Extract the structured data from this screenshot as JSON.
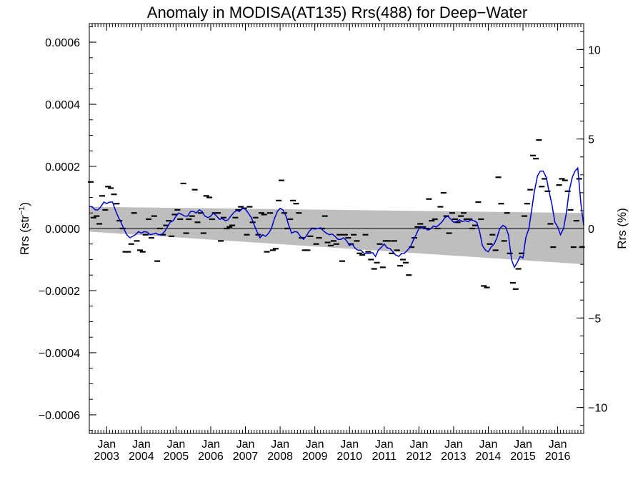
{
  "chart_data": {
    "type": "line",
    "title": "Anomaly in MODISA(AT135) Rrs(488) for Deep−Water",
    "ylabel_left": {
      "prefix": "Rrs (str",
      "superscript": "−1",
      "suffix": ")"
    },
    "ylabel_right": "Rrs (%)",
    "x_range": [
      2002.5,
      2016.75
    ],
    "y_range": [
      -0.00066,
      0.00066
    ],
    "y_right_range": [
      -11.45,
      11.45
    ],
    "y_ticks": [
      {
        "value": 0.0006,
        "label": "0.0006"
      },
      {
        "value": 0.0004,
        "label": "0.0004"
      },
      {
        "value": 0.0002,
        "label": "0.0002"
      },
      {
        "value": 0.0,
        "label": "0.0000"
      },
      {
        "value": -0.0002,
        "label": "−0.0002"
      },
      {
        "value": -0.0004,
        "label": "−0.0004"
      },
      {
        "value": -0.0006,
        "label": "−0.0006"
      }
    ],
    "y_right_ticks": [
      {
        "value": 10,
        "label": "10"
      },
      {
        "value": 5,
        "label": "5"
      },
      {
        "value": 0,
        "label": "0"
      },
      {
        "value": -5,
        "label": "−5"
      },
      {
        "value": -10,
        "label": "−10"
      }
    ],
    "x_ticks": [
      {
        "value": 2003,
        "month": "Jan",
        "year": "2003"
      },
      {
        "value": 2004,
        "month": "Jan",
        "year": "2004"
      },
      {
        "value": 2005,
        "month": "Jan",
        "year": "2005"
      },
      {
        "value": 2006,
        "month": "Jan",
        "year": "2006"
      },
      {
        "value": 2007,
        "month": "Jan",
        "year": "2007"
      },
      {
        "value": 2008,
        "month": "Jan",
        "year": "2008"
      },
      {
        "value": 2009,
        "month": "Jan",
        "year": "2009"
      },
      {
        "value": 2010,
        "month": "Jan",
        "year": "2010"
      },
      {
        "value": 2011,
        "month": "Jan",
        "year": "2011"
      },
      {
        "value": 2012,
        "month": "Jan",
        "year": "2012"
      },
      {
        "value": 2013,
        "month": "Jan",
        "year": "2013"
      },
      {
        "value": 2014,
        "month": "Jan",
        "year": "2014"
      },
      {
        "value": 2015,
        "month": "Jan",
        "year": "2015"
      },
      {
        "value": 2016,
        "month": "Jan",
        "year": "2016"
      }
    ],
    "confidence_band": {
      "color": "#bebebe",
      "start": {
        "x": 2002.5,
        "upper": 7e-05,
        "lower": -1e-05
      },
      "end": {
        "x": 2016.75,
        "upper": 5e-05,
        "lower": -0.000115
      }
    },
    "zero_line": 0,
    "colors": {
      "smoothed": "#0000cc",
      "monthly": "#000000",
      "band": "#bebebe",
      "zero": "#000000"
    },
    "monthly_anomaly": [
      [
        2002.54,
        0.00015
      ],
      [
        2002.62,
        3.5e-05
      ],
      [
        2002.71,
        4e-05
      ],
      [
        2002.79,
        1.5e-05
      ],
      [
        2002.87,
        0.000105
      ],
      [
        2002.96,
        6e-05
      ],
      [
        2003.04,
        0.000135
      ],
      [
        2003.12,
        0.00013
      ],
      [
        2003.21,
        0.00011
      ],
      [
        2003.29,
        8e-05
      ],
      [
        2003.37,
        2.5e-05
      ],
      [
        2003.46,
        0.0
      ],
      [
        2003.54,
        -7.5e-05
      ],
      [
        2003.62,
        -7.5e-05
      ],
      [
        2003.71,
        -5e-05
      ],
      [
        2003.79,
        5e-05
      ],
      [
        2003.87,
        -4e-05
      ],
      [
        2003.96,
        -7e-05
      ],
      [
        2004.04,
        -7.5e-05
      ],
      [
        2004.12,
        -2e-05
      ],
      [
        2004.21,
        3e-05
      ],
      [
        2004.29,
        -3e-05
      ],
      [
        2004.37,
        4e-05
      ],
      [
        2004.46,
        -0.000105
      ],
      [
        2004.54,
        0.0
      ],
      [
        2004.62,
        -2e-05
      ],
      [
        2004.71,
        1e-05
      ],
      [
        2004.79,
        2.5e-05
      ],
      [
        2004.87,
        -2.5e-05
      ],
      [
        2004.96,
        4.5e-05
      ],
      [
        2005.04,
        6e-05
      ],
      [
        2005.12,
        3e-05
      ],
      [
        2005.21,
        0.000145
      ],
      [
        2005.29,
        -1.5e-05
      ],
      [
        2005.37,
        3e-05
      ],
      [
        2005.46,
        4e-05
      ],
      [
        2005.54,
        0.000125
      ],
      [
        2005.62,
        2e-05
      ],
      [
        2005.71,
        5e-05
      ],
      [
        2005.79,
        -1.5e-05
      ],
      [
        2005.87,
        0.000105
      ],
      [
        2005.96,
        0.0001
      ],
      [
        2006.04,
        3e-05
      ],
      [
        2006.12,
        5e-05
      ],
      [
        2006.21,
        5e-05
      ],
      [
        2006.29,
        -4e-05
      ],
      [
        2006.37,
        3.5e-05
      ],
      [
        2006.46,
        0.0
      ],
      [
        2006.54,
        5e-06
      ],
      [
        2006.62,
        1e-05
      ],
      [
        2006.71,
        3.5e-05
      ],
      [
        2006.79,
        6e-05
      ],
      [
        2006.87,
        7e-05
      ],
      [
        2006.96,
        6.5e-05
      ],
      [
        2007.04,
        -2e-05
      ],
      [
        2007.12,
        7e-05
      ],
      [
        2007.21,
        2e-05
      ],
      [
        2007.29,
        3.5e-05
      ],
      [
        2007.37,
        -2e-05
      ],
      [
        2007.46,
        5e-05
      ],
      [
        2007.54,
        4.5e-05
      ],
      [
        2007.62,
        -7.5e-05
      ],
      [
        2007.71,
        5e-05
      ],
      [
        2007.79,
        -7e-05
      ],
      [
        2007.87,
        -6.5e-05
      ],
      [
        2007.96,
        9e-05
      ],
      [
        2008.04,
        0.000155
      ],
      [
        2008.12,
        5e-05
      ],
      [
        2008.21,
        0.0
      ],
      [
        2008.29,
        3e-05
      ],
      [
        2008.37,
        9e-05
      ],
      [
        2008.46,
        8e-05
      ],
      [
        2008.54,
        5e-05
      ],
      [
        2008.62,
        -3e-05
      ],
      [
        2008.71,
        -7e-05
      ],
      [
        2008.79,
        -7e-05
      ],
      [
        2008.87,
        -2.5e-05
      ],
      [
        2008.96,
        0.0
      ],
      [
        2009.04,
        -5e-05
      ],
      [
        2009.12,
        -3e-05
      ],
      [
        2009.21,
        0.0
      ],
      [
        2009.29,
        4e-05
      ],
      [
        2009.37,
        -4.5e-05
      ],
      [
        2009.46,
        -5.5e-05
      ],
      [
        2009.54,
        -4e-05
      ],
      [
        2009.62,
        -5e-05
      ],
      [
        2009.71,
        -2e-05
      ],
      [
        2009.79,
        -0.000105
      ],
      [
        2009.87,
        -2e-05
      ],
      [
        2009.96,
        -3e-05
      ],
      [
        2010.04,
        -5e-05
      ],
      [
        2010.12,
        -2e-05
      ],
      [
        2010.21,
        -4e-05
      ],
      [
        2010.29,
        -8e-05
      ],
      [
        2010.37,
        -8.5e-05
      ],
      [
        2010.46,
        -2e-05
      ],
      [
        2010.54,
        -7.5e-05
      ],
      [
        2010.62,
        -0.0001
      ],
      [
        2010.71,
        -0.00013
      ],
      [
        2010.79,
        -0.00011
      ],
      [
        2010.87,
        -5e-05
      ],
      [
        2010.96,
        -0.000125
      ],
      [
        2011.04,
        -4e-05
      ],
      [
        2011.12,
        -4e-05
      ],
      [
        2011.21,
        -8e-05
      ],
      [
        2011.29,
        -4e-05
      ],
      [
        2011.37,
        -7e-05
      ],
      [
        2011.46,
        -0.00012
      ],
      [
        2011.54,
        -0.0001
      ],
      [
        2011.62,
        -0.00011
      ],
      [
        2011.71,
        -0.00015
      ],
      [
        2011.79,
        -6e-05
      ],
      [
        2011.87,
        -3e-05
      ],
      [
        2011.96,
        5e-06
      ],
      [
        2012.04,
        1.5e-05
      ],
      [
        2012.12,
        5e-06
      ],
      [
        2012.21,
        0.0
      ],
      [
        2012.29,
        9.5e-05
      ],
      [
        2012.37,
        2.5e-05
      ],
      [
        2012.46,
        3e-05
      ],
      [
        2012.54,
        0.0
      ],
      [
        2012.62,
        7e-05
      ],
      [
        2012.71,
        0.000115
      ],
      [
        2012.79,
        4e-05
      ],
      [
        2012.87,
        -1.5e-05
      ],
      [
        2012.96,
        5e-05
      ],
      [
        2013.04,
        3e-05
      ],
      [
        2013.12,
        2e-05
      ],
      [
        2013.21,
        4e-05
      ],
      [
        2013.29,
        5e-05
      ],
      [
        2013.37,
        3e-05
      ],
      [
        2013.46,
        3e-05
      ],
      [
        2013.54,
        0.0
      ],
      [
        2013.62,
        1e-05
      ],
      [
        2013.71,
        8.5e-05
      ],
      [
        2013.79,
        3e-05
      ],
      [
        2013.87,
        -0.000185
      ],
      [
        2013.96,
        -0.00019
      ],
      [
        2014.04,
        -5e-05
      ],
      [
        2014.12,
        -2e-05
      ],
      [
        2014.21,
        -7e-05
      ],
      [
        2014.29,
        0.000165
      ],
      [
        2014.37,
        8e-05
      ],
      [
        2014.46,
        -4e-05
      ],
      [
        2014.54,
        5e-05
      ],
      [
        2014.62,
        -8e-05
      ],
      [
        2014.71,
        -0.000175
      ],
      [
        2014.79,
        -0.000195
      ],
      [
        2014.87,
        -0.00013
      ],
      [
        2014.96,
        -8e-05
      ],
      [
        2015.04,
        4e-05
      ],
      [
        2015.12,
        8e-05
      ],
      [
        2015.21,
        0.000125
      ],
      [
        2015.29,
        0.000235
      ],
      [
        2015.37,
        0.000225
      ],
      [
        2015.46,
        0.000285
      ],
      [
        2015.54,
        0.000135
      ],
      [
        2015.62,
        0.00016
      ],
      [
        2015.71,
        0.00012
      ],
      [
        2015.79,
        1.5e-05
      ],
      [
        2015.87,
        -6e-05
      ],
      [
        2016.04,
        0.00014
      ],
      [
        2016.12,
        0.00016
      ],
      [
        2016.21,
        0.000155
      ],
      [
        2016.29,
        0.00012
      ],
      [
        2016.37,
        6e-05
      ],
      [
        2016.46,
        -6e-05
      ],
      [
        2016.54,
        2.5e-05
      ],
      [
        2016.62,
        0.00016
      ],
      [
        2016.7,
        -6e-05
      ]
    ],
    "smoothed_anomaly": [
      [
        2002.5,
        7.2e-05
      ],
      [
        2002.58,
        7e-05
      ],
      [
        2002.67,
        6e-05
      ],
      [
        2002.75,
        6e-05
      ],
      [
        2002.83,
        7e-05
      ],
      [
        2002.92,
        8.5e-05
      ],
      [
        2003.0,
        8e-05
      ],
      [
        2003.08,
        8.5e-05
      ],
      [
        2003.17,
        8.5e-05
      ],
      [
        2003.25,
        6e-05
      ],
      [
        2003.33,
        3.8e-05
      ],
      [
        2003.42,
        1.8e-05
      ],
      [
        2003.5,
        -2e-06
      ],
      [
        2003.58,
        -2e-05
      ],
      [
        2003.67,
        -3e-05
      ],
      [
        2003.75,
        -2.5e-05
      ],
      [
        2003.83,
        -2e-05
      ],
      [
        2003.92,
        -1e-05
      ],
      [
        2004.0,
        -1.5e-05
      ],
      [
        2004.08,
        -1e-05
      ],
      [
        2004.17,
        -1.2e-05
      ],
      [
        2004.25,
        -2e-05
      ],
      [
        2004.33,
        -1.8e-05
      ],
      [
        2004.42,
        -1.5e-05
      ],
      [
        2004.5,
        -2e-05
      ],
      [
        2004.58,
        -2e-05
      ],
      [
        2004.67,
        -1e-05
      ],
      [
        2004.75,
        5e-06
      ],
      [
        2004.83,
        2e-05
      ],
      [
        2004.92,
        2.5e-05
      ],
      [
        2005.0,
        4e-05
      ],
      [
        2005.08,
        5e-05
      ],
      [
        2005.17,
        4.5e-05
      ],
      [
        2005.25,
        4e-05
      ],
      [
        2005.33,
        4e-05
      ],
      [
        2005.42,
        5.5e-05
      ],
      [
        2005.5,
        5.5e-05
      ],
      [
        2005.58,
        5e-05
      ],
      [
        2005.67,
        6e-05
      ],
      [
        2005.75,
        5.5e-05
      ],
      [
        2005.83,
        4e-05
      ],
      [
        2005.92,
        3.5e-05
      ],
      [
        2006.0,
        4e-05
      ],
      [
        2006.08,
        5e-05
      ],
      [
        2006.17,
        4e-05
      ],
      [
        2006.25,
        3e-05
      ],
      [
        2006.33,
        3.2e-05
      ],
      [
        2006.42,
        2.5e-05
      ],
      [
        2006.5,
        2.8e-05
      ],
      [
        2006.58,
        4e-05
      ],
      [
        2006.67,
        5.2e-05
      ],
      [
        2006.75,
        5.8e-05
      ],
      [
        2006.83,
        5.5e-05
      ],
      [
        2006.92,
        6.5e-05
      ],
      [
        2007.0,
        6.2e-05
      ],
      [
        2007.08,
        5e-05
      ],
      [
        2007.17,
        3.5e-05
      ],
      [
        2007.25,
        1.2e-05
      ],
      [
        2007.33,
        -1e-05
      ],
      [
        2007.42,
        -3e-05
      ],
      [
        2007.5,
        -2e-05
      ],
      [
        2007.58,
        -2.5e-05
      ],
      [
        2007.67,
        -1.5e-05
      ],
      [
        2007.75,
        0.0
      ],
      [
        2007.83,
        3e-05
      ],
      [
        2007.92,
        5.5e-05
      ],
      [
        2008.0,
        6.5e-05
      ],
      [
        2008.08,
        6e-05
      ],
      [
        2008.17,
        4e-05
      ],
      [
        2008.25,
        1e-05
      ],
      [
        2008.33,
        -1.5e-05
      ],
      [
        2008.42,
        -1e-05
      ],
      [
        2008.5,
        -1.2e-05
      ],
      [
        2008.58,
        -2.5e-05
      ],
      [
        2008.67,
        -3.5e-05
      ],
      [
        2008.75,
        -2.5e-05
      ],
      [
        2008.83,
        -1e-05
      ],
      [
        2008.92,
        0.0
      ],
      [
        2009.0,
        -2e-06
      ],
      [
        2009.08,
        0.0
      ],
      [
        2009.17,
        2e-06
      ],
      [
        2009.25,
        -8e-06
      ],
      [
        2009.33,
        -1.5e-05
      ],
      [
        2009.42,
        -2e-05
      ],
      [
        2009.5,
        -1.8e-05
      ],
      [
        2009.58,
        -2.5e-05
      ],
      [
        2009.67,
        -3.5e-05
      ],
      [
        2009.75,
        -3.5e-05
      ],
      [
        2009.83,
        -3e-05
      ],
      [
        2009.92,
        -4e-05
      ],
      [
        2010.0,
        -5.5e-05
      ],
      [
        2010.08,
        -5e-05
      ],
      [
        2010.17,
        -6.5e-05
      ],
      [
        2010.25,
        -7e-05
      ],
      [
        2010.33,
        -7e-05
      ],
      [
        2010.42,
        -8e-05
      ],
      [
        2010.5,
        -8e-05
      ],
      [
        2010.58,
        -8e-05
      ],
      [
        2010.67,
        -7.8e-05
      ],
      [
        2010.75,
        -9e-05
      ],
      [
        2010.83,
        -7e-05
      ],
      [
        2010.92,
        -6e-05
      ],
      [
        2011.0,
        -5e-05
      ],
      [
        2011.08,
        -6.2e-05
      ],
      [
        2011.17,
        -6.5e-05
      ],
      [
        2011.25,
        -7.5e-05
      ],
      [
        2011.33,
        -8.5e-05
      ],
      [
        2011.42,
        -9e-05
      ],
      [
        2011.5,
        -8e-05
      ],
      [
        2011.58,
        -8e-05
      ],
      [
        2011.67,
        -7e-05
      ],
      [
        2011.75,
        -6e-05
      ],
      [
        2011.83,
        -4e-05
      ],
      [
        2011.92,
        -2e-05
      ],
      [
        2012.0,
        0.0
      ],
      [
        2012.08,
        5e-06
      ],
      [
        2012.17,
        2e-06
      ],
      [
        2012.25,
        -5e-06
      ],
      [
        2012.33,
        -2e-06
      ],
      [
        2012.42,
        8e-06
      ],
      [
        2012.5,
        5e-06
      ],
      [
        2012.58,
        1.2e-05
      ],
      [
        2012.67,
        2.2e-05
      ],
      [
        2012.75,
        3.5e-05
      ],
      [
        2012.83,
        4e-05
      ],
      [
        2012.92,
        3e-05
      ],
      [
        2013.0,
        2e-05
      ],
      [
        2013.08,
        2.2e-05
      ],
      [
        2013.17,
        2.8e-05
      ],
      [
        2013.25,
        2.2e-05
      ],
      [
        2013.33,
        2.5e-05
      ],
      [
        2013.42,
        2.2e-05
      ],
      [
        2013.5,
        2.8e-05
      ],
      [
        2013.58,
        2.5e-05
      ],
      [
        2013.67,
        2e-05
      ],
      [
        2013.75,
        -1e-05
      ],
      [
        2013.83,
        -5.5e-05
      ],
      [
        2013.92,
        -7e-05
      ],
      [
        2014.0,
        -7.5e-05
      ],
      [
        2014.08,
        -6e-05
      ],
      [
        2014.17,
        -5e-05
      ],
      [
        2014.25,
        -3e-05
      ],
      [
        2014.33,
        0.0
      ],
      [
        2014.42,
        1e-05
      ],
      [
        2014.5,
        5e-06
      ],
      [
        2014.58,
        -2e-05
      ],
      [
        2014.67,
        -0.0001
      ],
      [
        2014.75,
        -0.000125
      ],
      [
        2014.83,
        -0.00011
      ],
      [
        2014.92,
        -9e-05
      ],
      [
        2015.0,
        -9.5e-05
      ],
      [
        2015.08,
        -3e-05
      ],
      [
        2015.17,
        0.0
      ],
      [
        2015.25,
        6e-05
      ],
      [
        2015.33,
        0.00012
      ],
      [
        2015.42,
        0.00017
      ],
      [
        2015.5,
        0.000185
      ],
      [
        2015.58,
        0.000185
      ],
      [
        2015.67,
        0.000165
      ],
      [
        2015.75,
        0.00012
      ],
      [
        2015.83,
        8e-05
      ],
      [
        2015.92,
        2e-05
      ],
      [
        2016.0,
        5e-06
      ],
      [
        2016.08,
        -2e-05
      ],
      [
        2016.17,
        0.0
      ],
      [
        2016.25,
        5e-05
      ],
      [
        2016.33,
        0.00012
      ],
      [
        2016.42,
        0.000165
      ],
      [
        2016.5,
        0.000185
      ],
      [
        2016.58,
        0.000195
      ],
      [
        2016.67,
        8e-05
      ],
      [
        2016.75,
        1e-05
      ]
    ]
  }
}
